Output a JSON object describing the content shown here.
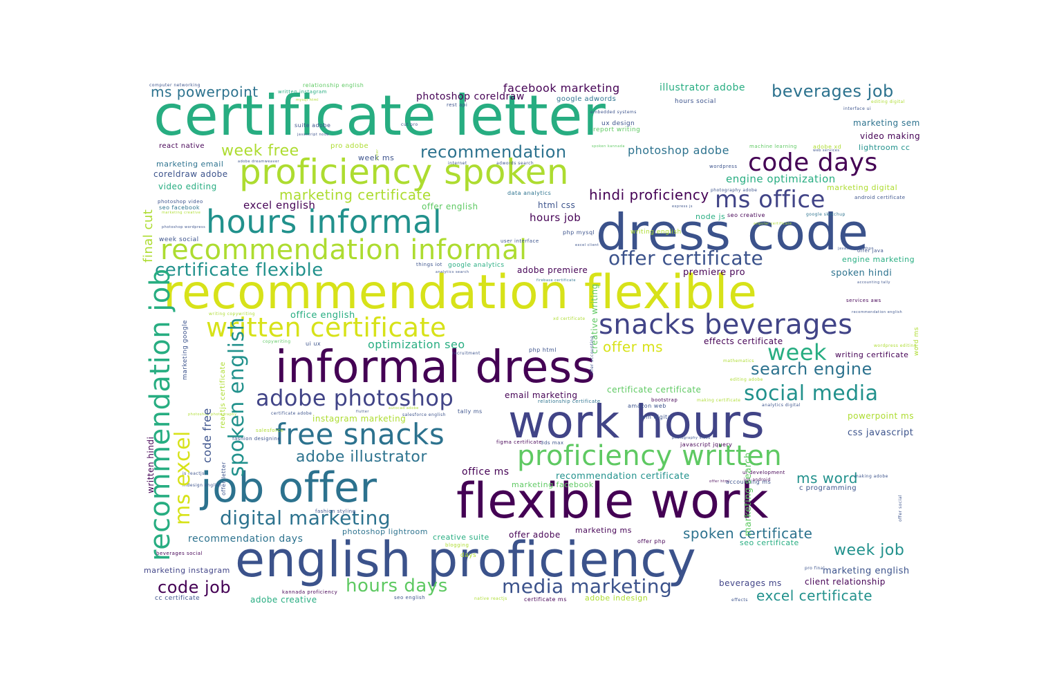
{
  "palette": {
    "purple": "#440154",
    "indigo": "#3b528b",
    "teal": "#21918c",
    "green": "#5ec962",
    "yellow": "#d7e219",
    "lime": "#addc30",
    "darkteal": "#2c728e",
    "blue": "#414487",
    "mid": "#27ad81"
  },
  "words": [
    {
      "t": "certificate letter",
      "s": "huge",
      "c": "mid"
    },
    {
      "t": "dress code",
      "s": "big",
      "c": "indigo"
    },
    {
      "t": "recommendation flexible",
      "s": "big",
      "c": "yellow"
    },
    {
      "t": "informal dress",
      "s": "big",
      "c": "purple"
    },
    {
      "t": "work hours",
      "s": "big",
      "c": "blue"
    },
    {
      "t": "flexible work",
      "s": "big",
      "c": "purple"
    },
    {
      "t": "english proficiency",
      "s": "big",
      "c": "indigo"
    },
    {
      "t": "job offer",
      "s": "big",
      "c": "darkteal"
    },
    {
      "t": "proficiency spoken",
      "s": "large",
      "c": "lime"
    },
    {
      "t": "hours informal",
      "s": "large",
      "c": "teal"
    },
    {
      "t": "recommendation informal",
      "s": "large",
      "c": "lime"
    },
    {
      "t": "snacks beverages",
      "s": "large",
      "c": "blue"
    },
    {
      "t": "free snacks",
      "s": "large",
      "c": "darkteal"
    },
    {
      "t": "proficiency written",
      "s": "large",
      "c": "green"
    },
    {
      "t": "written certificate",
      "s": "large",
      "c": "yellow"
    },
    {
      "t": "code days",
      "s": "medium",
      "c": "purple"
    },
    {
      "t": "ms office",
      "s": "medium",
      "c": "blue"
    },
    {
      "t": "adobe photoshop",
      "s": "medium",
      "c": "blue"
    },
    {
      "t": "certificate flexible",
      "s": "medium",
      "c": "teal"
    },
    {
      "t": "offer certificate",
      "s": "medium",
      "c": "indigo"
    },
    {
      "t": "digital marketing",
      "s": "medium",
      "c": "darkteal"
    },
    {
      "t": "media marketing",
      "s": "medium",
      "c": "indigo"
    },
    {
      "t": "week",
      "s": "medium",
      "c": "mid"
    },
    {
      "t": "social media",
      "s": "medium",
      "c": "teal"
    },
    {
      "t": "adobe illustrator",
      "s": "small",
      "c": "darkteal"
    },
    {
      "t": "hours days",
      "s": "small",
      "c": "green"
    },
    {
      "t": "code job",
      "s": "small",
      "c": "purple"
    },
    {
      "t": "search engine",
      "s": "small",
      "c": "darkteal"
    },
    {
      "t": "beverages job",
      "s": "small",
      "c": "darkteal"
    },
    {
      "t": "recommendation",
      "s": "small",
      "c": "darkteal"
    },
    {
      "t": "week free",
      "s": "small",
      "c": "lime"
    },
    {
      "t": "ms powerpoint",
      "s": "small",
      "c": "darkteal"
    },
    {
      "t": "spoken certificate",
      "s": "small",
      "c": "darkteal"
    },
    {
      "t": "week job",
      "s": "small",
      "c": "teal"
    },
    {
      "t": "excel certificate",
      "s": "small",
      "c": "teal"
    },
    {
      "t": "ms word",
      "s": "small",
      "c": "teal"
    },
    {
      "t": "marketing certificate",
      "s": "small",
      "c": "lime"
    },
    {
      "t": "hindi proficiency",
      "s": "small",
      "c": "purple"
    },
    {
      "t": "offer ms",
      "s": "small",
      "c": "yellow"
    },
    {
      "t": "optimization seo",
      "s": "xs",
      "c": "mid"
    },
    {
      "t": "facebook marketing",
      "s": "xs",
      "c": "purple"
    },
    {
      "t": "photoshop coreldraw",
      "s": "xs",
      "c": "purple"
    },
    {
      "t": "illustrator adobe",
      "s": "xs",
      "c": "mid"
    },
    {
      "t": "photoshop adobe",
      "s": "xs",
      "c": "darkteal"
    },
    {
      "t": "engine optimization",
      "s": "xs",
      "c": "mid"
    },
    {
      "t": "excel english",
      "s": "xs",
      "c": "purple"
    },
    {
      "t": "hours job",
      "s": "xs",
      "c": "purple"
    },
    {
      "t": "adobe premiere",
      "s": "xs",
      "c": "purple"
    },
    {
      "t": "premiere pro",
      "s": "xs",
      "c": "purple"
    },
    {
      "t": "spoken hindi",
      "s": "xs",
      "c": "darkteal"
    },
    {
      "t": "office english",
      "s": "xs",
      "c": "mid"
    },
    {
      "t": "effects certificate",
      "s": "xs",
      "c": "purple"
    },
    {
      "t": "writing certificate",
      "s": "xs",
      "c": "purple"
    },
    {
      "t": "email marketing",
      "s": "xs",
      "c": "purple"
    },
    {
      "t": "certificate certificate",
      "s": "xs",
      "c": "green"
    },
    {
      "t": "instagram marketing",
      "s": "xs",
      "c": "lime"
    },
    {
      "t": "office ms",
      "s": "xs",
      "c": "purple"
    },
    {
      "t": "recommendation certificate",
      "s": "xs",
      "c": "teal"
    },
    {
      "t": "marketing facebook",
      "s": "xs",
      "c": "green"
    },
    {
      "t": "recommendation days",
      "s": "xs",
      "c": "darkteal"
    },
    {
      "t": "photoshop lightroom",
      "s": "xs",
      "c": "darkteal"
    },
    {
      "t": "creative suite",
      "s": "xs",
      "c": "mid"
    },
    {
      "t": "offer adobe",
      "s": "xs",
      "c": "purple"
    },
    {
      "t": "marketing ms",
      "s": "xs",
      "c": "purple"
    },
    {
      "t": "seo certificate",
      "s": "xs",
      "c": "mid"
    },
    {
      "t": "marketing english",
      "s": "xs",
      "c": "indigo"
    },
    {
      "t": "client relationship",
      "s": "xs",
      "c": "purple"
    },
    {
      "t": "beverages ms",
      "s": "xs",
      "c": "blue"
    },
    {
      "t": "marketing instagram",
      "s": "xs",
      "c": "blue"
    },
    {
      "t": "adobe creative",
      "s": "xs",
      "c": "mid"
    },
    {
      "t": "adobe indesign",
      "s": "xs",
      "c": "lime"
    },
    {
      "t": "powerpoint ms",
      "s": "xs",
      "c": "lime"
    },
    {
      "t": "css javascript",
      "s": "xs",
      "c": "indigo"
    },
    {
      "t": "c programming",
      "s": "xs",
      "c": "indigo"
    },
    {
      "t": "video editing",
      "s": "xs",
      "c": "mid"
    },
    {
      "t": "coreldraw adobe",
      "s": "xs",
      "c": "indigo"
    },
    {
      "t": "marketing email",
      "s": "xs",
      "c": "darkteal"
    },
    {
      "t": "video making",
      "s": "xs",
      "c": "purple"
    },
    {
      "t": "marketing sem",
      "s": "xs",
      "c": "darkteal"
    },
    {
      "t": "offer english",
      "s": "xs",
      "c": "green"
    },
    {
      "t": "html css",
      "s": "xs",
      "c": "indigo"
    },
    {
      "t": "google adwords",
      "s": "xxs",
      "c": "darkteal"
    },
    {
      "t": "react native",
      "s": "xxs",
      "c": "purple"
    },
    {
      "t": "pro adobe",
      "s": "xxs",
      "c": "lime"
    },
    {
      "t": "week ms",
      "s": "xxs",
      "c": "indigo"
    },
    {
      "t": "ux design",
      "s": "xxs",
      "c": "indigo"
    },
    {
      "t": "report writing",
      "s": "xxs",
      "c": "green"
    },
    {
      "t": "lightroom cc",
      "s": "xxs",
      "c": "teal"
    },
    {
      "t": "hours social",
      "s": "xxs",
      "c": "indigo"
    },
    {
      "t": "relationship english",
      "s": "xxs",
      "c": "green"
    },
    {
      "t": "written instagram",
      "s": "xxs",
      "c": "mid"
    },
    {
      "t": "google analytics",
      "s": "xxs",
      "c": "mid"
    },
    {
      "t": "node js",
      "s": "xxs",
      "c": "mid"
    },
    {
      "t": "marketing digital",
      "s": "xxs",
      "c": "lime"
    },
    {
      "t": "engine marketing",
      "s": "xxs",
      "c": "mid"
    },
    {
      "t": "week social",
      "s": "xxs",
      "c": "indigo"
    },
    {
      "t": "php mysql",
      "s": "xxs",
      "c": "indigo"
    },
    {
      "t": "php html",
      "s": "xxs",
      "c": "indigo"
    },
    {
      "t": "offer php",
      "s": "xxs",
      "c": "purple"
    },
    {
      "t": "tally ms",
      "s": "xxs",
      "c": "indigo"
    },
    {
      "t": "days",
      "s": "xxs",
      "c": "lime"
    },
    {
      "t": "amazon web",
      "s": "xxs",
      "c": "indigo"
    },
    {
      "t": "sem digital",
      "s": "xxs",
      "c": "indigo"
    },
    {
      "t": "bootstrap",
      "s": "xxs",
      "c": "purple"
    },
    {
      "t": "accounting ms",
      "s": "xxs",
      "c": "indigo"
    },
    {
      "t": "salesforce",
      "s": "xxs",
      "c": "lime"
    },
    {
      "t": "ui ux",
      "s": "xxs",
      "c": "indigo"
    },
    {
      "t": "blogging",
      "s": "xxs",
      "c": "lime"
    },
    {
      "t": "3ds max",
      "s": "xxs",
      "c": "indigo"
    },
    {
      "t": "ui development",
      "s": "xxs",
      "c": "purple"
    },
    {
      "t": "computer networking",
      "s": "xxs",
      "c": "indigo"
    },
    {
      "t": "fashion designing",
      "s": "xxs",
      "c": "indigo"
    },
    {
      "t": "js reactjs",
      "s": "xxs",
      "c": "indigo"
    },
    {
      "t": "cc certificate",
      "s": "xxs",
      "c": "indigo"
    },
    {
      "t": "beverages social",
      "s": "xxs",
      "c": "purple"
    },
    {
      "t": "kannada proficiency",
      "s": "xxs",
      "c": "purple"
    },
    {
      "t": "seo english",
      "s": "xxs",
      "c": "indigo"
    },
    {
      "t": "certificate ms",
      "s": "xxs",
      "c": "purple"
    },
    {
      "t": "offer java",
      "s": "xxs",
      "c": "indigo"
    },
    {
      "t": "android certificate",
      "s": "xxs",
      "c": "indigo"
    },
    {
      "t": "machine learning",
      "s": "xxs",
      "c": "green"
    },
    {
      "t": "adobe xd",
      "s": "xxs",
      "c": "lime"
    },
    {
      "t": "wordpress",
      "s": "xxs",
      "c": "indigo"
    },
    {
      "t": "data analytics",
      "s": "xxs",
      "c": "darkteal"
    },
    {
      "t": "user interface",
      "s": "xxs",
      "c": "indigo"
    },
    {
      "t": "things iot",
      "s": "xxs",
      "c": "indigo"
    },
    {
      "t": "recruitment",
      "s": "xxs",
      "c": "indigo"
    },
    {
      "t": "rest api",
      "s": "xxs",
      "c": "indigo"
    },
    {
      "t": "suite adobe",
      "s": "xxs",
      "c": "indigo"
    },
    {
      "t": "cut pro",
      "s": "xxs",
      "c": "indigo"
    },
    {
      "t": "seo creative",
      "s": "xxs",
      "c": "purple"
    },
    {
      "t": "writing english",
      "s": "xxs",
      "c": "lime"
    },
    {
      "t": "javascript jquery",
      "s": "xxs",
      "c": "purple"
    },
    {
      "t": "figma certificate",
      "s": "xxs",
      "c": "purple"
    },
    {
      "t": "ios android",
      "s": "xxs",
      "c": "purple"
    },
    {
      "t": "pro final",
      "s": "xxs",
      "c": "indigo"
    },
    {
      "t": "effects",
      "s": "xxs",
      "c": "indigo"
    },
    {
      "t": "native reactjs",
      "s": "xxs",
      "c": "lime"
    },
    {
      "t": "photoshop wordpress",
      "s": "xxs",
      "c": "indigo"
    },
    {
      "t": "photoshop video",
      "s": "xxs",
      "c": "indigo"
    },
    {
      "t": "seo facebook",
      "s": "xxs",
      "c": "darkteal"
    },
    {
      "t": "marketing creative",
      "s": "xxs",
      "c": "lime"
    },
    {
      "t": "writing copywriting",
      "s": "xxs",
      "c": "lime"
    },
    {
      "t": "copywriting",
      "s": "xxs",
      "c": "green"
    },
    {
      "t": "services aws",
      "s": "xxs",
      "c": "purple"
    },
    {
      "t": "accounting tally",
      "s": "xxs",
      "c": "indigo"
    },
    {
      "t": "recommendation english",
      "s": "xxs",
      "c": "indigo"
    },
    {
      "t": "wordpress editing",
      "s": "xxs",
      "c": "lime"
    },
    {
      "t": "mathematics",
      "s": "xxs",
      "c": "lime"
    },
    {
      "t": "editing adobe",
      "s": "xxs",
      "c": "lime"
    },
    {
      "t": "relationship certificate",
      "s": "xxs",
      "c": "darkteal"
    },
    {
      "t": "making certificate",
      "s": "xxs",
      "c": "lime"
    },
    {
      "t": "analytics digital",
      "s": "xxs",
      "c": "indigo"
    },
    {
      "t": "photography video",
      "s": "xxs",
      "c": "indigo"
    },
    {
      "t": "making adobe",
      "s": "xxs",
      "c": "indigo"
    },
    {
      "t": "angular certificate",
      "s": "xxs",
      "c": "lime"
    },
    {
      "t": "google sketchup",
      "s": "xxs",
      "c": "darkteal"
    },
    {
      "t": "javascript python",
      "s": "xxs",
      "c": "indigo"
    },
    {
      "t": "express js",
      "s": "xxs",
      "c": "indigo"
    },
    {
      "t": "photography adobe",
      "s": "xxs",
      "c": "indigo"
    },
    {
      "t": "interface ui",
      "s": "xxs",
      "c": "indigo"
    },
    {
      "t": "editing digital",
      "s": "xxs",
      "c": "lime"
    },
    {
      "t": "embedded systems",
      "s": "xxs",
      "c": "indigo"
    },
    {
      "t": "spoken kannada",
      "s": "xxs",
      "c": "green"
    },
    {
      "t": "web services",
      "s": "xxs",
      "c": "indigo"
    },
    {
      "t": "internet",
      "s": "xxs",
      "c": "indigo"
    },
    {
      "t": "adwords search",
      "s": "xxs",
      "c": "indigo"
    },
    {
      "t": "adobe dreamweaver",
      "s": "xxs",
      "c": "indigo"
    },
    {
      "t": "mysql html",
      "s": "xxs",
      "c": "lime"
    },
    {
      "t": "javascript node",
      "s": "xxs",
      "c": "indigo"
    },
    {
      "t": "excel client",
      "s": "xxs",
      "c": "indigo"
    },
    {
      "t": "firebase certificate",
      "s": "xxs",
      "c": "darkteal"
    },
    {
      "t": "analytics search",
      "s": "xxs",
      "c": "indigo"
    },
    {
      "t": "xd certificate",
      "s": "xxs",
      "c": "lime"
    },
    {
      "t": "certificate adobe",
      "s": "xxs",
      "c": "indigo"
    },
    {
      "t": "salesforce english",
      "s": "xxs",
      "c": "indigo"
    },
    {
      "t": "flutter",
      "s": "xxs",
      "c": "indigo"
    },
    {
      "t": "autocad adobe",
      "s": "xxs",
      "c": "lime"
    },
    {
      "t": "indesign english",
      "s": "xxs",
      "c": "indigo"
    },
    {
      "t": "photoshop photography",
      "s": "xxs",
      "c": "lime"
    },
    {
      "t": "fashion styling",
      "s": "xxs",
      "c": "indigo"
    },
    {
      "t": "offer html",
      "s": "xxs",
      "c": "purple"
    },
    {
      "t": "final cut",
      "s": "xxs",
      "c": "lime"
    },
    {
      "t": "recommendation job",
      "s": "vmed",
      "c": "mid"
    },
    {
      "t": "spoken english",
      "s": "vlarge",
      "c": "teal"
    },
    {
      "t": "ms excel",
      "s": "vlarge",
      "c": "yellow"
    },
    {
      "t": "code free",
      "s": "vmed",
      "c": "indigo"
    },
    {
      "t": "creative writing",
      "s": "vsm",
      "c": "green"
    },
    {
      "t": "written hindi",
      "s": "vxs",
      "c": "purple"
    },
    {
      "t": "marketing search",
      "s": "vxs",
      "c": "green"
    },
    {
      "t": "word ms",
      "s": "vxs",
      "c": "lime"
    },
    {
      "t": "marketing google",
      "s": "vxxs",
      "c": "indigo"
    },
    {
      "t": "reactjs certificate",
      "s": "vxxs",
      "c": "lime"
    },
    {
      "t": "offer social",
      "s": "vxxs",
      "c": "indigo"
    },
    {
      "t": "offer letter",
      "s": "vxxs",
      "c": "indigo"
    },
    {
      "t": "letter",
      "s": "vxxs",
      "c": "lime"
    },
    {
      "t": "offer accounting",
      "s": "vxxs",
      "c": "indigo"
    },
    {
      "t": "offer digital",
      "s": "vxxs",
      "c": "lime"
    }
  ]
}
